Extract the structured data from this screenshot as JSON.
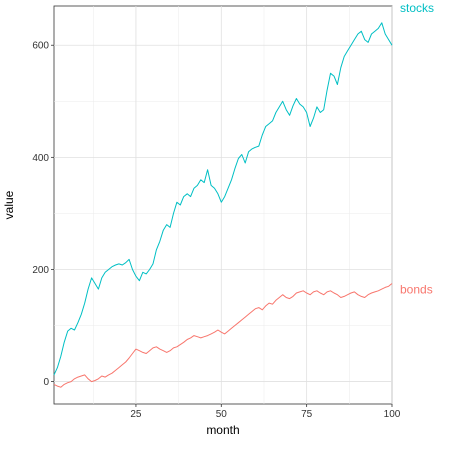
{
  "chart_data": {
    "type": "line",
    "xlabel": "month",
    "ylabel": "value",
    "xlim": [
      1,
      100
    ],
    "ylim": [
      -40,
      670
    ],
    "x_ticks": [
      25,
      50,
      75,
      100
    ],
    "y_ticks": [
      0,
      200,
      400,
      600
    ],
    "grid": true,
    "legend": "direct labels at right end of lines",
    "x": [
      1,
      2,
      3,
      4,
      5,
      6,
      7,
      8,
      9,
      10,
      11,
      12,
      13,
      14,
      15,
      16,
      17,
      18,
      19,
      20,
      21,
      22,
      23,
      24,
      25,
      26,
      27,
      28,
      29,
      30,
      31,
      32,
      33,
      34,
      35,
      36,
      37,
      38,
      39,
      40,
      41,
      42,
      43,
      44,
      45,
      46,
      47,
      48,
      49,
      50,
      51,
      52,
      53,
      54,
      55,
      56,
      57,
      58,
      59,
      60,
      61,
      62,
      63,
      64,
      65,
      66,
      67,
      68,
      69,
      70,
      71,
      72,
      73,
      74,
      75,
      76,
      77,
      78,
      79,
      80,
      81,
      82,
      83,
      84,
      85,
      86,
      87,
      88,
      89,
      90,
      91,
      92,
      93,
      94,
      95,
      96,
      97,
      98,
      99,
      100
    ],
    "series": [
      {
        "name": "stocks",
        "color": "#00BFC4",
        "values": [
          12,
          25,
          45,
          70,
          90,
          95,
          92,
          105,
          120,
          140,
          165,
          185,
          175,
          165,
          185,
          195,
          200,
          205,
          208,
          210,
          208,
          212,
          218,
          200,
          188,
          180,
          195,
          192,
          200,
          210,
          235,
          250,
          270,
          280,
          275,
          300,
          320,
          315,
          330,
          335,
          330,
          345,
          350,
          360,
          355,
          378,
          350,
          345,
          335,
          320,
          330,
          345,
          360,
          380,
          398,
          405,
          390,
          410,
          415,
          418,
          420,
          440,
          455,
          460,
          465,
          480,
          490,
          500,
          485,
          475,
          492,
          505,
          495,
          490,
          480,
          455,
          470,
          490,
          480,
          485,
          520,
          550,
          545,
          530,
          560,
          580,
          590,
          600,
          610,
          620,
          625,
          610,
          605,
          620,
          625,
          630,
          640,
          620,
          610,
          600
        ]
      },
      {
        "name": "bonds",
        "color": "#F8766D",
        "values": [
          -5,
          -8,
          -10,
          -5,
          -2,
          0,
          5,
          8,
          10,
          12,
          5,
          0,
          2,
          5,
          10,
          8,
          12,
          15,
          20,
          25,
          30,
          35,
          42,
          50,
          58,
          55,
          52,
          50,
          55,
          60,
          62,
          58,
          55,
          52,
          55,
          60,
          62,
          66,
          70,
          75,
          78,
          82,
          80,
          78,
          80,
          82,
          85,
          88,
          92,
          88,
          85,
          90,
          95,
          100,
          105,
          110,
          115,
          120,
          125,
          130,
          132,
          128,
          135,
          140,
          138,
          145,
          150,
          155,
          150,
          148,
          152,
          158,
          160,
          162,
          158,
          155,
          160,
          162,
          158,
          155,
          160,
          162,
          158,
          155,
          150,
          152,
          155,
          158,
          160,
          155,
          152,
          150,
          155,
          158,
          160,
          162,
          165,
          168,
          170,
          175
        ]
      }
    ]
  }
}
